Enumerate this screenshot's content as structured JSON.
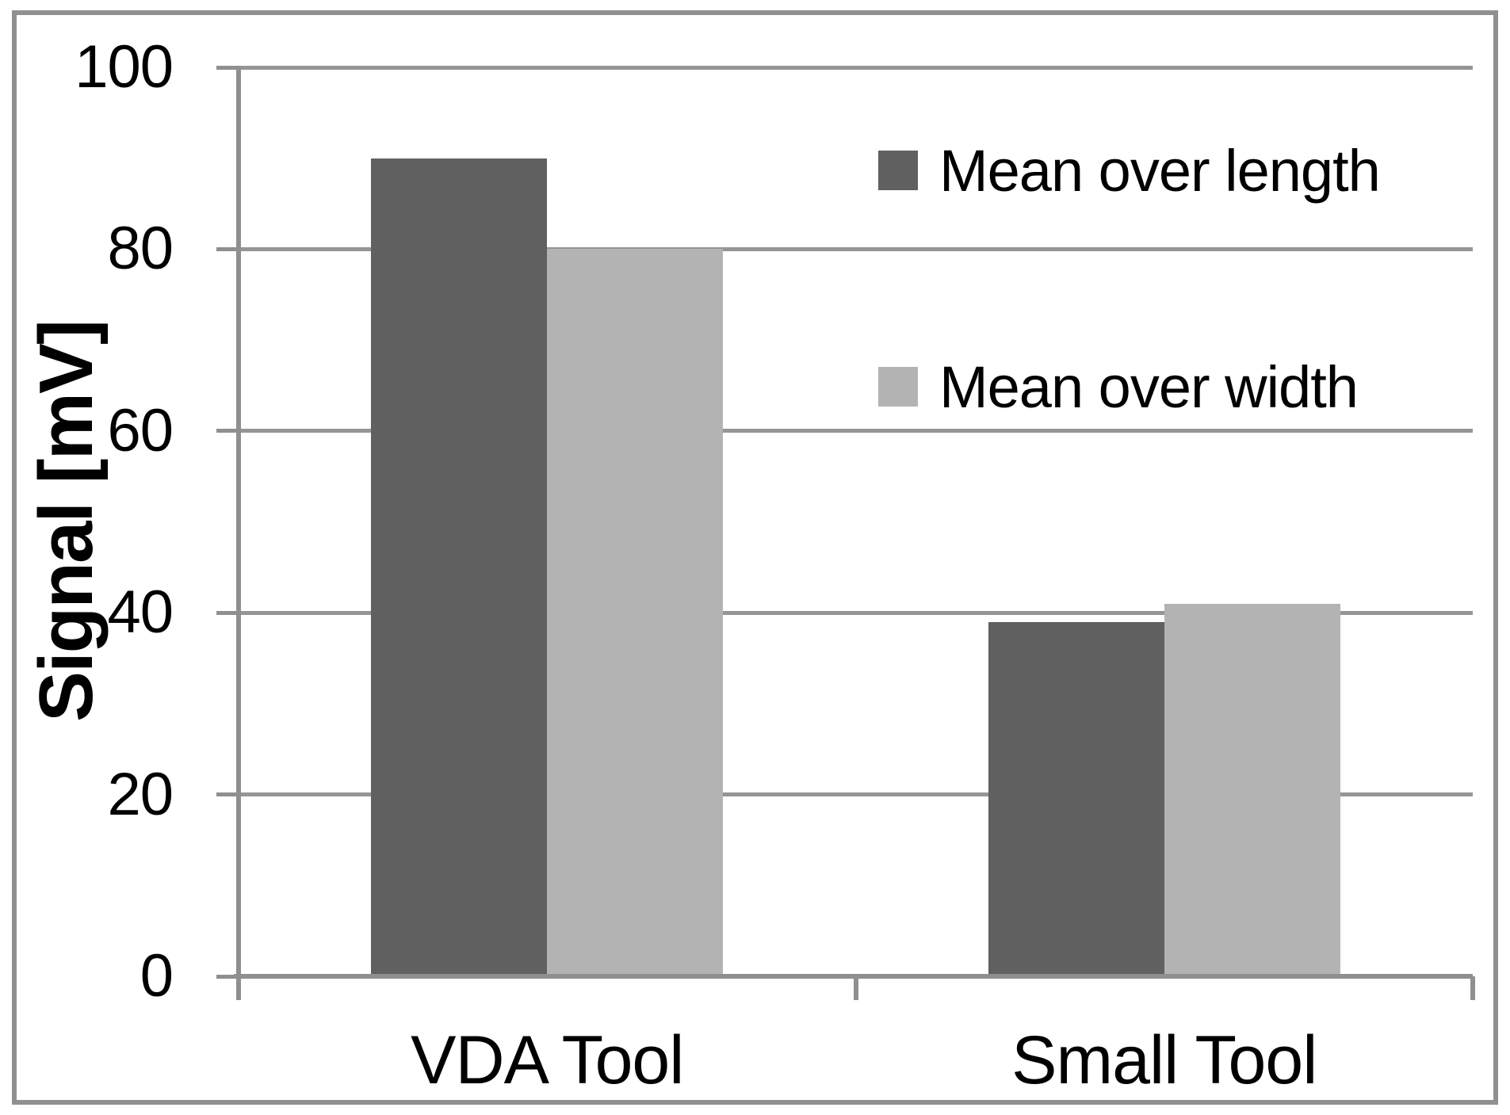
{
  "chart_data": {
    "type": "bar",
    "categories": [
      "VDA Tool",
      "Small Tool"
    ],
    "series": [
      {
        "name": "Mean over length",
        "color": "#606060",
        "values": [
          90,
          39
        ]
      },
      {
        "name": "Mean over width",
        "color": "#b3b3b3",
        "values": [
          80,
          41
        ]
      }
    ],
    "title": "",
    "xlabel": "",
    "ylabel": "Signal [mV]",
    "ylim": [
      0,
      100
    ],
    "yticks": [
      0,
      20,
      40,
      60,
      80,
      100
    ],
    "grid": "horizontal",
    "legend_position": "inside-top-right"
  },
  "colors": {
    "background": "#ffffff",
    "border": "#909090",
    "axis": "#8f8f8f",
    "gridline": "#959595",
    "text": "#000000"
  }
}
